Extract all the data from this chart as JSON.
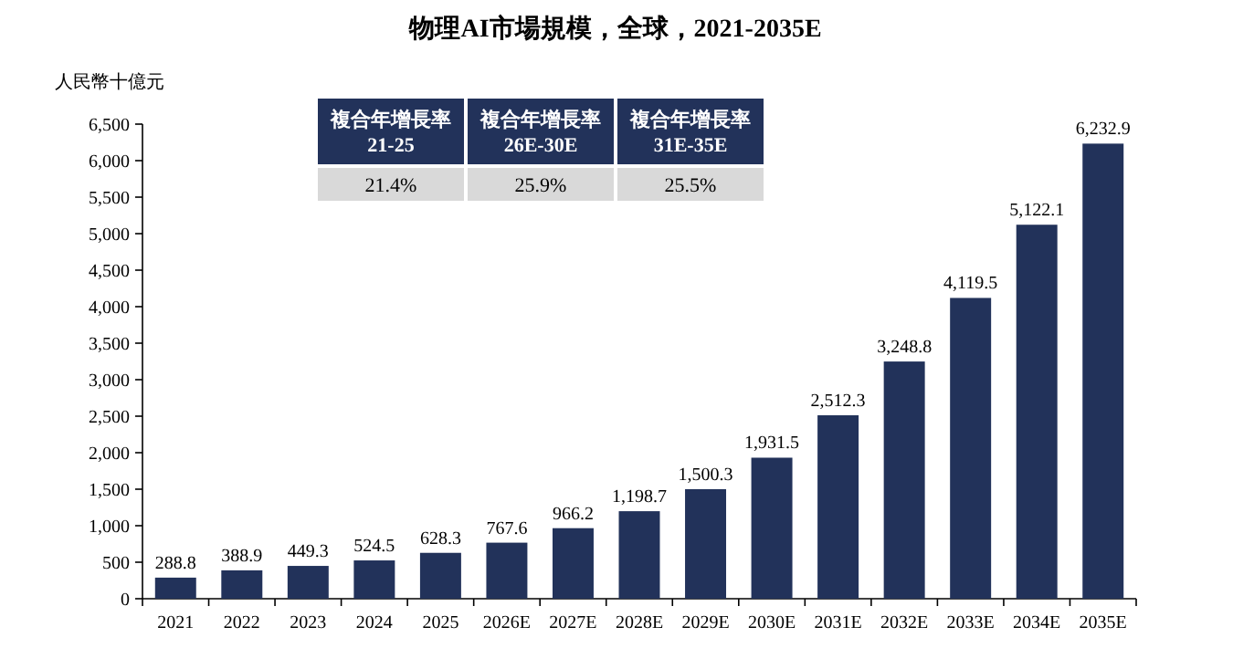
{
  "chart_data": {
    "type": "bar",
    "title": "物理AI市場規模，全球，2021-2035E",
    "ylabel": "人民幣十億元",
    "categories": [
      "2021",
      "2022",
      "2023",
      "2024",
      "2025",
      "2026E",
      "2027E",
      "2028E",
      "2029E",
      "2030E",
      "2031E",
      "2032E",
      "2033E",
      "2034E",
      "2035E"
    ],
    "values": [
      288.8,
      388.9,
      449.3,
      524.5,
      628.3,
      767.6,
      966.2,
      1198.7,
      1500.3,
      1931.5,
      2512.3,
      3248.8,
      4119.5,
      5122.1,
      6232.9
    ],
    "value_labels": [
      "288.8",
      "388.9",
      "449.3",
      "524.5",
      "628.3",
      "767.6",
      "966.2",
      "1,198.7",
      "1,500.3",
      "1,931.5",
      "2,512.3",
      "3,248.8",
      "4,119.5",
      "5,122.1",
      "6,232.9"
    ],
    "color": "#22325a",
    "ylim": [
      0,
      6500
    ],
    "yticks": [
      0,
      500,
      {
        "value": 1000,
        "label": "1,000"
      },
      {
        "value": 1500,
        "label": "1,500"
      },
      {
        "value": 2000,
        "label": "2,000"
      },
      {
        "value": 2500,
        "label": "2,500"
      },
      {
        "value": 3000,
        "label": "3,000"
      },
      {
        "value": 3500,
        "label": "3,500"
      },
      {
        "value": 4000,
        "label": "4,000"
      },
      {
        "value": 4500,
        "label": "4,500"
      },
      {
        "value": 5000,
        "label": "5,000"
      },
      {
        "value": 5500,
        "label": "5,500"
      },
      {
        "value": 6000,
        "label": "6,000"
      },
      {
        "value": 6500,
        "label": "6,500"
      }
    ],
    "grid": false,
    "annotations": [
      "複合年增長率\n21-25",
      "複合年增長率\n26E-30E",
      "複合年增長率\n31E-35E",
      "21.4%",
      "25.9%",
      "25.5%"
    ]
  }
}
